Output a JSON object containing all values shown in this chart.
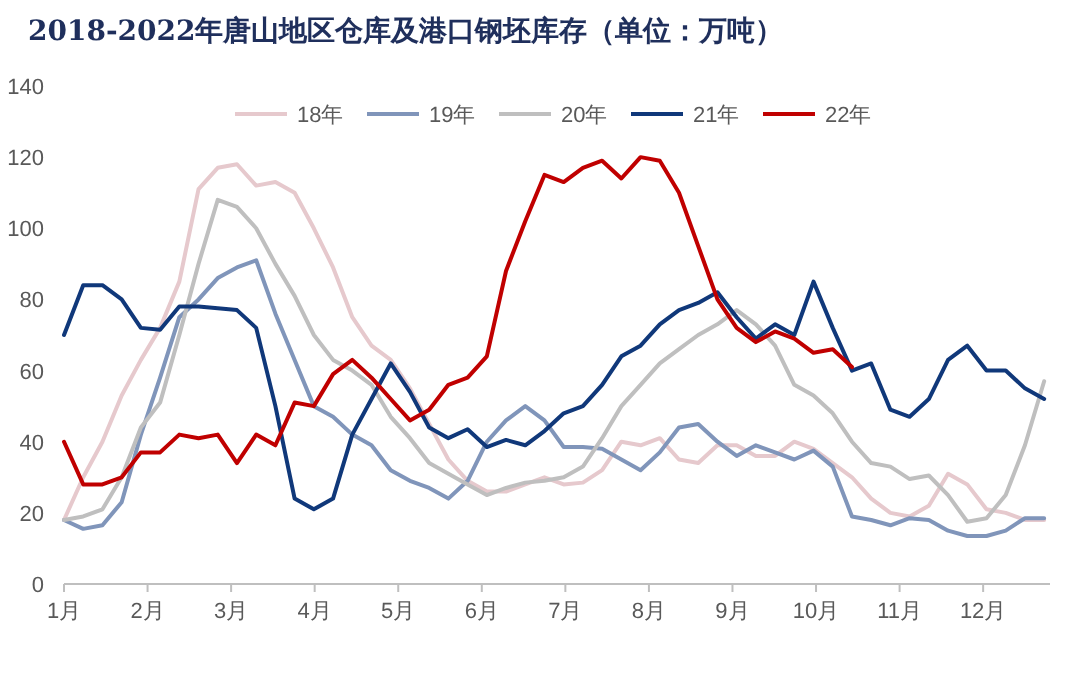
{
  "chart_data": {
    "type": "line",
    "title": "2018-2022年唐山地区仓库及港口钢坯库存（单位：万吨）",
    "x": [
      1,
      1.23,
      1.46,
      1.69,
      1.92,
      2.15,
      2.38,
      2.61,
      2.84,
      3.07,
      3.3,
      3.53,
      3.76,
      3.99,
      4.22,
      4.45,
      4.68,
      4.91,
      5.14,
      5.37,
      5.6,
      5.83,
      6.06,
      6.29,
      6.52,
      6.75,
      6.98,
      7.21,
      7.44,
      7.67,
      7.9,
      8.13,
      8.36,
      8.59,
      8.82,
      9.05,
      9.28,
      9.51,
      9.74,
      9.97,
      10.2,
      10.43,
      10.66,
      10.89,
      11.12,
      11.35,
      11.58,
      11.81,
      12.04,
      12.27,
      12.5,
      12.73
    ],
    "xlim": [
      1,
      12.8
    ],
    "xticks": [
      {
        "value": 1,
        "label": "1月"
      },
      {
        "value": 2,
        "label": "2月"
      },
      {
        "value": 3,
        "label": "3月"
      },
      {
        "value": 4,
        "label": "4月"
      },
      {
        "value": 5,
        "label": "5月"
      },
      {
        "value": 6,
        "label": "6月"
      },
      {
        "value": 7,
        "label": "7月"
      },
      {
        "value": 8,
        "label": "8月"
      },
      {
        "value": 9,
        "label": "9月"
      },
      {
        "value": 10,
        "label": "10月"
      },
      {
        "value": 11,
        "label": "11月"
      },
      {
        "value": 12,
        "label": "12月"
      }
    ],
    "ylim": [
      0,
      140
    ],
    "yticks": [
      0,
      20,
      40,
      60,
      80,
      100,
      120,
      140
    ],
    "grid": false,
    "legend": "top",
    "series": [
      {
        "name": "18年",
        "color": "#e6c9cd",
        "values": [
          18,
          30,
          40,
          53,
          63,
          72,
          85,
          111,
          117,
          118,
          112,
          113,
          110,
          100,
          89,
          75,
          67,
          63,
          55,
          45,
          35,
          29,
          26,
          26,
          28,
          30,
          28,
          28.5,
          32,
          40,
          39,
          41,
          35,
          34,
          39,
          39,
          36,
          36,
          40,
          38,
          34,
          30,
          24,
          20,
          19,
          22,
          31,
          28,
          21,
          20,
          18,
          18
        ]
      },
      {
        "name": "19年",
        "color": "#8095ba",
        "values": [
          18,
          15.5,
          16.5,
          23,
          42,
          58,
          75,
          80,
          86,
          89,
          91,
          76,
          63,
          50,
          47,
          42,
          39,
          32,
          29,
          27,
          24,
          29,
          40,
          46,
          50,
          46,
          38.5,
          38.5,
          38,
          35,
          32,
          37,
          44,
          45,
          40,
          36,
          39,
          37,
          35,
          37.5,
          33,
          19,
          18,
          16.5,
          18.5,
          18,
          15,
          13.5,
          13.5,
          15,
          18.5,
          18.5
        ]
      },
      {
        "name": "20年",
        "color": "#bfbfbf",
        "values": [
          18,
          19,
          21,
          30,
          44,
          51,
          70,
          90,
          108,
          106,
          100,
          90,
          81,
          70,
          63,
          60,
          56,
          47,
          41,
          34,
          31,
          28,
          25,
          27,
          28.5,
          29,
          30,
          33,
          41,
          50,
          56,
          62,
          66,
          70,
          73,
          77,
          73,
          67,
          56,
          53,
          48,
          40,
          34,
          33,
          29.5,
          30.5,
          25,
          17.5,
          18.5,
          25,
          39,
          57
        ]
      },
      {
        "name": "21年",
        "color": "#10387a",
        "values": [
          70,
          84,
          84,
          80,
          72,
          71.5,
          78,
          78,
          77.5,
          77,
          72,
          50,
          24,
          21,
          24,
          42,
          52,
          62,
          54,
          44,
          41,
          43.5,
          38.5,
          40.5,
          39,
          43,
          48,
          50,
          56,
          64,
          67,
          73,
          77,
          79,
          82,
          75,
          69,
          73,
          70,
          85,
          72,
          60,
          62,
          49,
          47,
          52,
          63,
          67,
          60,
          60,
          55,
          52
        ]
      },
      {
        "name": "22年",
        "color": "#c00000",
        "values": [
          40,
          28,
          28,
          30,
          37,
          37,
          42,
          41,
          42,
          34,
          42,
          39,
          51,
          50,
          59,
          63,
          58,
          52,
          46,
          49,
          56,
          58,
          64,
          88,
          102,
          115,
          113,
          117,
          119,
          114,
          120,
          119,
          110,
          95,
          80,
          72,
          68,
          71,
          69,
          65,
          66,
          61,
          null,
          null,
          null,
          null,
          null,
          null,
          null,
          null,
          null,
          null
        ]
      }
    ]
  }
}
